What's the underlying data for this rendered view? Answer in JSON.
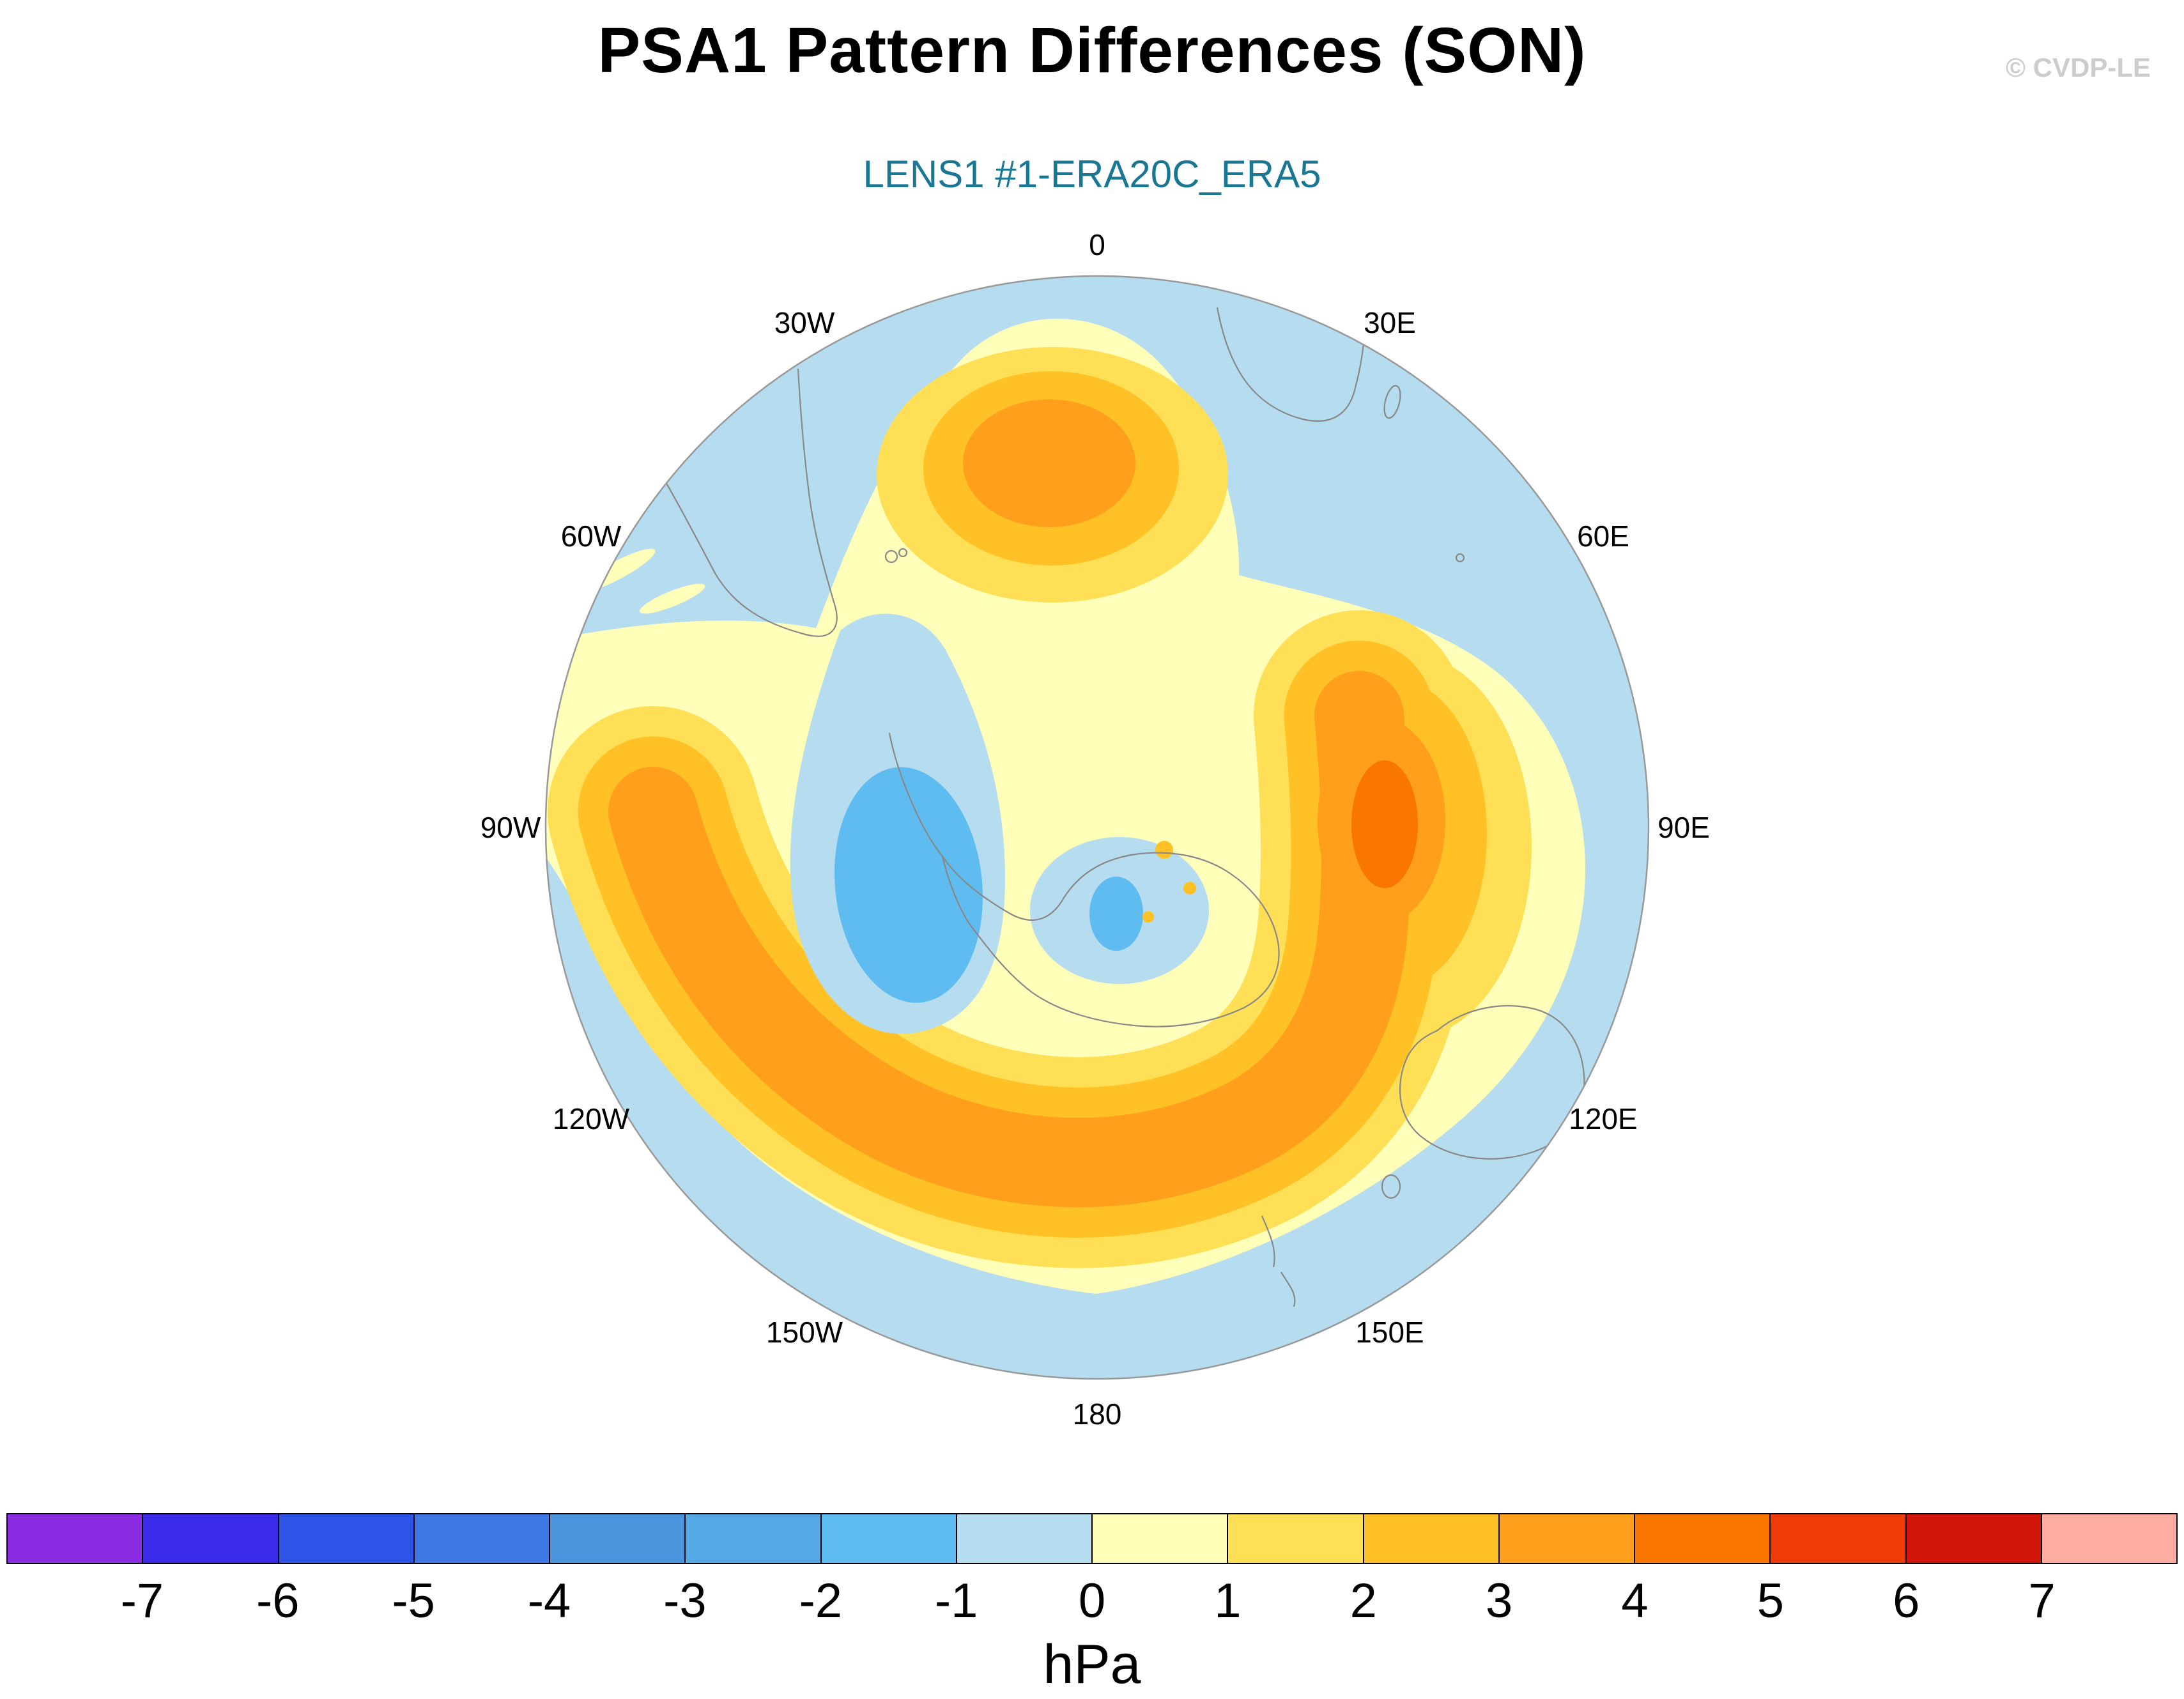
{
  "header": {
    "title": "PSA1 Pattern Differences (SON)",
    "watermark": "© CVDP-LE",
    "subtitle": "LENS1 #1-ERA20C_ERA5",
    "subtitle_color": "#1A7793"
  },
  "map": {
    "longitude_labels": [
      "0",
      "30E",
      "60E",
      "90E",
      "120E",
      "150E",
      "180",
      "150W",
      "120W",
      "90W",
      "60W",
      "30W"
    ]
  },
  "colorbar": {
    "unit_label": "hPa",
    "tick_labels": [
      "-7",
      "-6",
      "-5",
      "-4",
      "-3",
      "-2",
      "-1",
      "0",
      "1",
      "2",
      "3",
      "4",
      "5",
      "6",
      "7"
    ],
    "colors": [
      "#8B2BE2",
      "#3A2BE8",
      "#2E55E8",
      "#3E78E2",
      "#4B95DC",
      "#55A8E6",
      "#5FBCF0",
      "#B5DCEF",
      "#FFFFB9",
      "#FFDF55",
      "#FFC125",
      "#FF9F1C",
      "#F97602",
      "#EF3B08",
      "#D11508",
      "#FFADA0"
    ]
  },
  "chart_data": {
    "type": "heatmap",
    "subtype": "filled-contour polar stereographic map",
    "title": "PSA1 Pattern Differences (SON)",
    "panel_label": "LENS1 #1-ERA20C_ERA5",
    "units": "hPa",
    "projection": "southern-hemisphere polar stereographic, 0 longitude at top, Antarctica centered",
    "contour_levels": [
      -7,
      -6,
      -5,
      -4,
      -3,
      -2,
      -1,
      0,
      1,
      2,
      3,
      4,
      5,
      6,
      7
    ],
    "palette": [
      "#8B2BE2",
      "#3A2BE8",
      "#2E55E8",
      "#3E78E2",
      "#4B95DC",
      "#55A8E6",
      "#5FBCF0",
      "#B5DCEF",
      "#FFFFB9",
      "#FFDF55",
      "#FFC125",
      "#FF9F1C",
      "#F97602",
      "#EF3B08",
      "#D11508",
      "#FFADA0"
    ],
    "legend_position": "horizontal labelbar at bottom, labels at segment boundaries",
    "features": [
      {
        "name": "positive-anomaly-top",
        "location": "mid-latitudes near 0-30W (top of map)",
        "peak_value_hPa": "3 to 4"
      },
      {
        "name": "positive-anomaly-crescent",
        "location": "arc from ~90W across 180 toward 120E (South Pacific, south of Australia)",
        "peak_value_hPa": "3 to 4"
      },
      {
        "name": "positive-anomaly-east",
        "location": "near 90E, south Indian Ocean sector",
        "peak_value_hPa": "4 to 5"
      },
      {
        "name": "negative-anomaly",
        "location": "Amundsen-Bellingshausen Seas west of the Antarctic Peninsula",
        "peak_value_hPa": "-2 to -1"
      },
      {
        "name": "background-field",
        "location": "remaining high southern latitudes and subtropics",
        "value_hPa": "-1 to 0"
      }
    ]
  }
}
